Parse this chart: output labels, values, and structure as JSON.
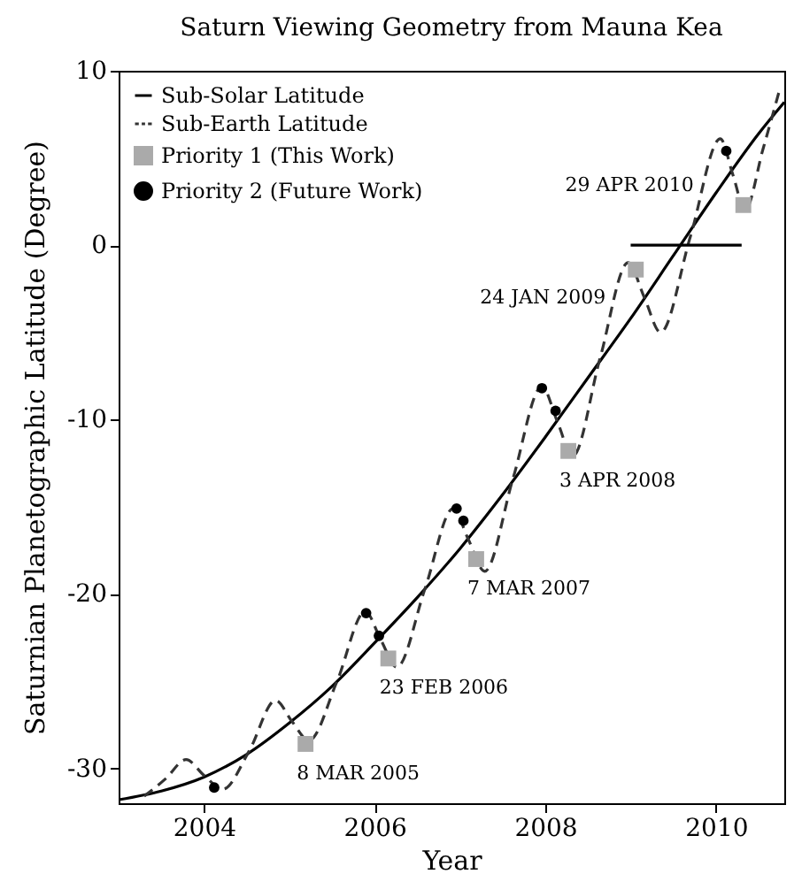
{
  "chart_data": {
    "type": "line",
    "title": "Saturn Viewing Geometry from Mauna Kea",
    "xlabel": "Year",
    "ylabel": "Saturnian Planetographic Latitude (Degree)",
    "xlim": [
      2003,
      2010.8
    ],
    "ylim": [
      -32,
      10
    ],
    "xticks": [
      2004,
      2006,
      2008,
      2010
    ],
    "yticks": [
      -30,
      -20,
      -10,
      0,
      10
    ],
    "grid": false,
    "legend": "top left",
    "series": [
      {
        "name": "Sub-Solar Latitude",
        "type": "line",
        "line_style": "solid",
        "color": "#000000",
        "x": [
          2003,
          2003.5,
          2004,
          2004.5,
          2005,
          2005.5,
          2006,
          2006.5,
          2007,
          2007.5,
          2008,
          2008.5,
          2009,
          2009.5,
          2010,
          2010.5,
          2010.8
        ],
        "values": [
          -31.8,
          -31.3,
          -30.5,
          -29.2,
          -27.4,
          -25.3,
          -22.8,
          -20.2,
          -17.4,
          -14.3,
          -11.0,
          -7.6,
          -4.2,
          -0.6,
          3.0,
          6.4,
          8.2
        ]
      },
      {
        "name": "Sub-Earth Latitude",
        "type": "line",
        "line_style": "dashed",
        "color": "#333333",
        "x": [
          2003.3,
          2003.55,
          2003.79,
          2004.0,
          2004.22,
          2004.53,
          2004.84,
          2005.03,
          2005.23,
          2005.56,
          2005.89,
          2006.07,
          2006.26,
          2006.59,
          2006.92,
          2007.1,
          2007.29,
          2007.62,
          2007.96,
          2008.14,
          2008.32,
          2008.64,
          2008.97,
          2009.16,
          2009.35,
          2009.7,
          2010.05,
          2010.2,
          2010.34,
          2010.55,
          2010.75
        ],
        "values": [
          -31.6,
          -30.6,
          -29.5,
          -30.4,
          -31.2,
          -29.0,
          -26.1,
          -27.3,
          -28.4,
          -25.0,
          -21.0,
          -22.6,
          -24.2,
          -19.7,
          -15.1,
          -16.9,
          -18.7,
          -13.4,
          -8.1,
          -10.1,
          -12.1,
          -6.5,
          -1.0,
          -3.0,
          -5.0,
          0.5,
          6.1,
          4.0,
          2.0,
          5.5,
          9.0
        ]
      },
      {
        "name": "Priority 1 (This Work)",
        "type": "scatter",
        "marker": "square",
        "color": "#aaaaaa",
        "x": [
          2005.19,
          2006.16,
          2007.19,
          2008.27,
          2009.06,
          2010.32
        ],
        "values": [
          -28.6,
          -23.7,
          -18.0,
          -11.8,
          -1.4,
          2.3
        ]
      },
      {
        "name": "Priority 2 (Future Work)",
        "type": "scatter",
        "marker": "circle",
        "color": "#000000",
        "x": [
          2004.12,
          2005.9,
          2006.05,
          2006.96,
          2007.04,
          2007.96,
          2008.12,
          2010.12
        ],
        "values": [
          -31.1,
          -21.1,
          -22.4,
          -15.1,
          -15.8,
          -8.2,
          -9.5,
          5.4
        ]
      },
      {
        "type": "line",
        "line_style": "solid",
        "color": "#000000",
        "x": [
          2009.0,
          2010.3
        ],
        "values": [
          0,
          0
        ]
      }
    ],
    "annotations": [
      {
        "text": "8 MAR 2005",
        "x": 2005.19,
        "y": -28.6
      },
      {
        "text": "23 FEB 2006",
        "x": 2006.16,
        "y": -23.7
      },
      {
        "text": "7 MAR 2007",
        "x": 2007.19,
        "y": -18.0
      },
      {
        "text": "3 APR 2008",
        "x": 2008.27,
        "y": -11.8
      },
      {
        "text": "24 JAN 2009",
        "x": 2009.06,
        "y": -1.4
      },
      {
        "text": "29 APR 2010",
        "x": 2010.32,
        "y": 2.3
      }
    ]
  }
}
